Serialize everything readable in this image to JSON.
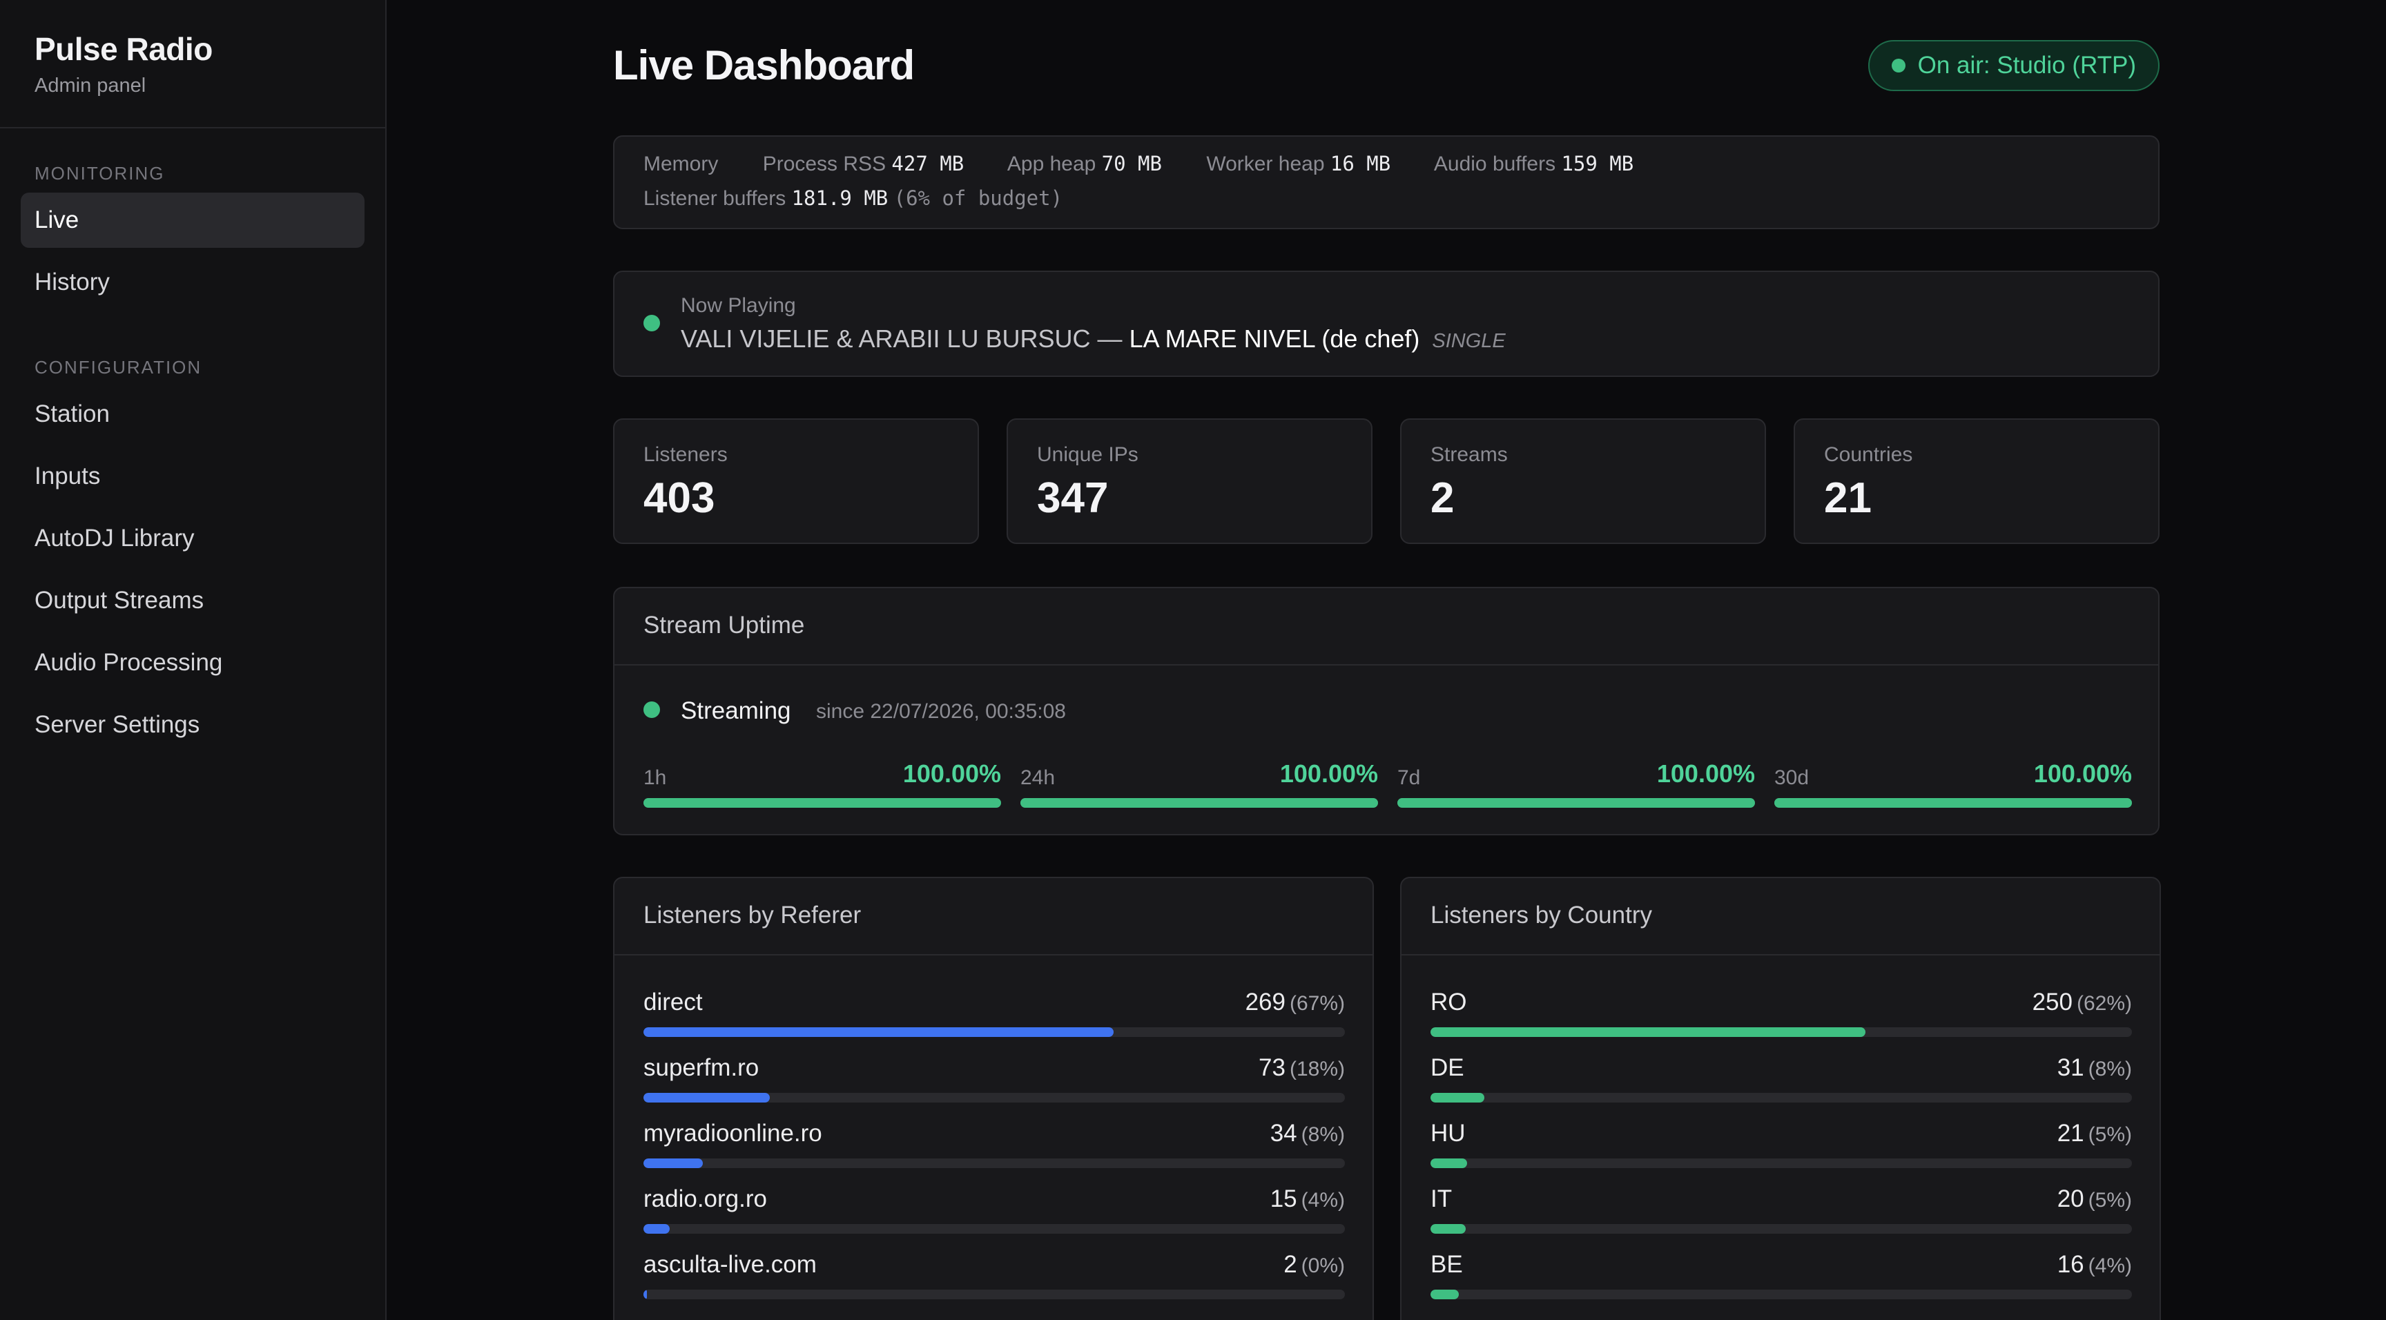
{
  "sidebar": {
    "brand": "Pulse Radio",
    "subtitle": "Admin panel",
    "section_monitoring": "Monitoring",
    "section_configuration": "Configuration",
    "monitoring_items": [
      {
        "label": "Live",
        "active": true
      },
      {
        "label": "History",
        "active": false
      }
    ],
    "configuration_items": [
      {
        "label": "Station"
      },
      {
        "label": "Inputs"
      },
      {
        "label": "AutoDJ Library"
      },
      {
        "label": "Output Streams"
      },
      {
        "label": "Audio Processing"
      },
      {
        "label": "Server Settings"
      }
    ]
  },
  "header": {
    "title": "Live Dashboard",
    "on_air": "On air: Studio (RTP)"
  },
  "memory": {
    "label": "Memory",
    "process_rss_label": "Process RSS",
    "process_rss": "427 MB",
    "app_heap_label": "App heap",
    "app_heap": "70 MB",
    "worker_heap_label": "Worker heap",
    "worker_heap": "16 MB",
    "audio_buffers_label": "Audio buffers",
    "audio_buffers": "159 MB",
    "listener_buffers_label": "Listener buffers",
    "listener_buffers": "181.9 MB",
    "listener_buffers_note": "(6% of budget)"
  },
  "now_playing": {
    "label": "Now Playing",
    "artist": "VALI VIJELIE & ARABII LU BURSUC",
    "separator": " — ",
    "title": "LA MARE NIVEL (de chef)",
    "tag": "SINGLE"
  },
  "stats": [
    {
      "label": "Listeners",
      "value": "403"
    },
    {
      "label": "Unique IPs",
      "value": "347"
    },
    {
      "label": "Streams",
      "value": "2"
    },
    {
      "label": "Countries",
      "value": "21"
    }
  ],
  "uptime": {
    "title": "Stream Uptime",
    "status": "Streaming",
    "since": "since 22/07/2026, 00:35:08",
    "periods": [
      {
        "period": "1h",
        "value": "100.00%",
        "fraction": 1.0
      },
      {
        "period": "24h",
        "value": "100.00%",
        "fraction": 1.0
      },
      {
        "period": "7d",
        "value": "100.00%",
        "fraction": 1.0
      },
      {
        "period": "30d",
        "value": "100.00%",
        "fraction": 1.0
      }
    ]
  },
  "referer": {
    "title": "Listeners by Referer",
    "accent": "#3f73f0",
    "rows": [
      {
        "name": "direct",
        "count": "269",
        "pct": "(67%)",
        "fraction": 0.67
      },
      {
        "name": "superfm.ro",
        "count": "73",
        "pct": "(18%)",
        "fraction": 0.18
      },
      {
        "name": "myradioonline.ro",
        "count": "34",
        "pct": "(8%)",
        "fraction": 0.085
      },
      {
        "name": "radio.org.ro",
        "count": "15",
        "pct": "(4%)",
        "fraction": 0.037
      },
      {
        "name": "asculta-live.com",
        "count": "2",
        "pct": "(0%)",
        "fraction": 0.005
      }
    ]
  },
  "country": {
    "title": "Listeners by Country",
    "accent": "#3fbf82",
    "rows": [
      {
        "name": "RO",
        "count": "250",
        "pct": "(62%)",
        "fraction": 0.62
      },
      {
        "name": "DE",
        "count": "31",
        "pct": "(8%)",
        "fraction": 0.077
      },
      {
        "name": "HU",
        "count": "21",
        "pct": "(5%)",
        "fraction": 0.052
      },
      {
        "name": "IT",
        "count": "20",
        "pct": "(5%)",
        "fraction": 0.05
      },
      {
        "name": "BE",
        "count": "16",
        "pct": "(4%)",
        "fraction": 0.04
      }
    ]
  },
  "colors": {
    "background": "#0b0b0d",
    "card": "#18181b",
    "success": "#3fbf82",
    "success_text": "#4fd49a",
    "referer_bar": "#3f73f0"
  }
}
